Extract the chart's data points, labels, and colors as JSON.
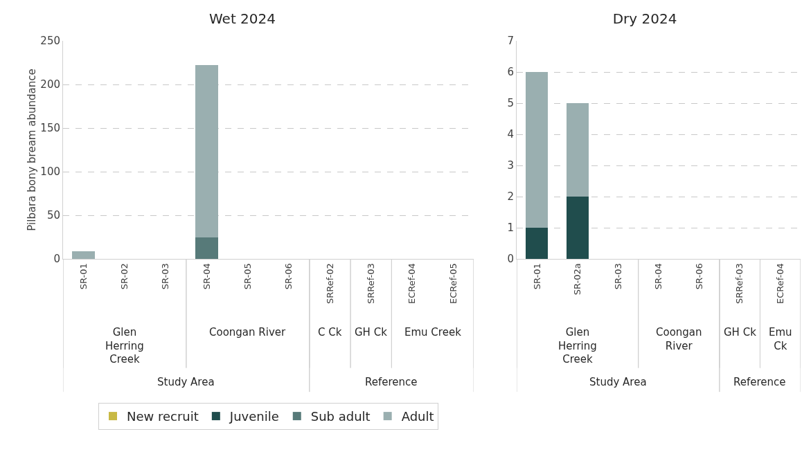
{
  "chart_data": [
    {
      "type": "bar",
      "title": "Wet 2024",
      "ylabel": "Pilbara bony bream abundance",
      "stacked": true,
      "grid": "y",
      "legend": "bottom",
      "ylim": [
        0,
        250
      ],
      "yticks": [
        0,
        50,
        100,
        150,
        200,
        250
      ],
      "categories": [
        "SR-01",
        "SR-02",
        "SR-03",
        "SR-04",
        "SR-05",
        "SR-06",
        "SRRef-02",
        "SRRef-03",
        "ECRef-04",
        "ECRef-05"
      ],
      "series": [
        {
          "name": "New recruit",
          "color": "#c8b944",
          "values": [
            0,
            0,
            0,
            0,
            0,
            0,
            0,
            0,
            0,
            0
          ]
        },
        {
          "name": "Juvenile",
          "color": "#204d4d",
          "values": [
            0,
            0,
            0,
            0,
            0,
            0,
            0,
            0,
            0,
            0
          ]
        },
        {
          "name": "Sub adult",
          "color": "#577a79",
          "values": [
            0,
            0,
            0,
            25,
            0,
            0,
            0,
            0,
            0,
            0
          ]
        },
        {
          "name": "Adult",
          "color": "#9aafb0",
          "values": [
            9,
            0,
            0,
            197,
            0,
            0,
            0,
            0,
            0,
            0
          ]
        }
      ],
      "annotations": [
        "Glen Herring Creek",
        "Coongan River",
        "C Ck",
        "GH Ck",
        "Emu Creek",
        "Study Area",
        "Reference"
      ]
    },
    {
      "type": "bar",
      "title": "Dry 2024",
      "stacked": true,
      "grid": "y",
      "legend": false,
      "ylim": [
        0,
        7
      ],
      "yticks": [
        0,
        1,
        2,
        3,
        4,
        5,
        6,
        7
      ],
      "categories": [
        "SR-01",
        "SR-02a",
        "SR-03",
        "SR-04",
        "SR-06",
        "SRRef-03",
        "ECRef-04"
      ],
      "series": [
        {
          "color": "#c8b944",
          "values": [
            0,
            0,
            0,
            0,
            0,
            0,
            0
          ]
        },
        {
          "color": "#204d4d",
          "values": [
            1,
            2,
            0,
            0,
            0,
            0,
            0
          ]
        },
        {
          "color": "#577a79",
          "values": [
            0,
            0,
            0,
            0,
            0,
            0,
            0
          ]
        },
        {
          "color": "#9aafb0",
          "values": [
            5,
            3,
            0,
            0,
            0,
            0,
            0
          ]
        }
      ],
      "annotations": [
        "Glen Herring Creek",
        "Coongan River",
        "GH Ck",
        "Emu Ck",
        "Study Area",
        "Reference"
      ]
    }
  ]
}
